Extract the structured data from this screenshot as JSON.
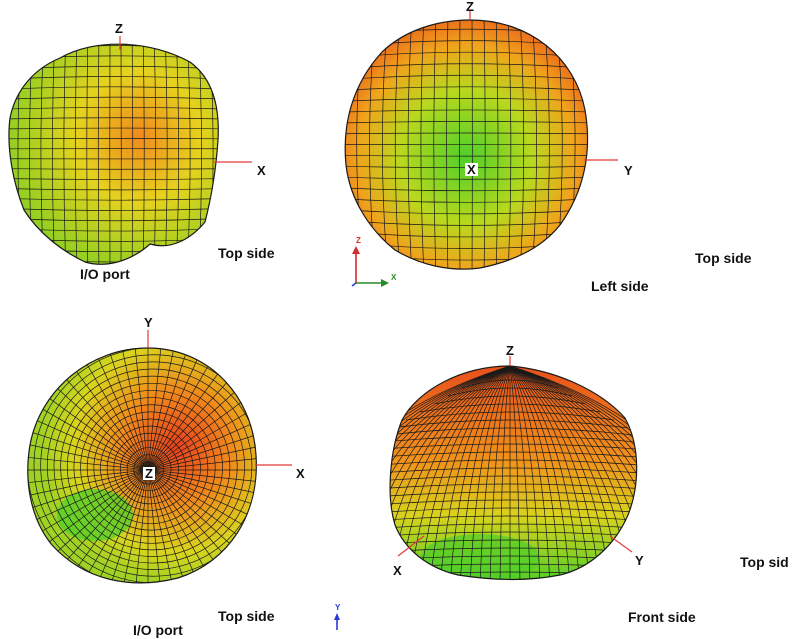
{
  "views": [
    {
      "id": "view-1",
      "axes": {
        "vertical": "Z",
        "horizontal": "X"
      },
      "captions": [
        "Top side",
        "I/O port"
      ]
    },
    {
      "id": "view-2",
      "axes": {
        "vertical": "Z",
        "horizontal": "Y",
        "center": "X"
      },
      "captions": [
        "Top side",
        "Left side"
      ],
      "triad": {
        "up": "Z",
        "right": "X"
      }
    },
    {
      "id": "view-3",
      "axes": {
        "vertical": "Y",
        "horizontal": "X",
        "center": "Z"
      },
      "captions": [
        "Top side",
        "I/O port"
      ],
      "triad": {
        "up": "Y"
      }
    },
    {
      "id": "view-4",
      "axes": {
        "vertical": "Z",
        "left": "X",
        "right": "Y"
      },
      "captions": [
        "Top sid",
        "Front side"
      ]
    }
  ],
  "colors": {
    "red": "#e8401c",
    "orange": "#f08a1c",
    "yellow": "#e6d21e",
    "green": "#5cd02a",
    "mesh": "#1a1a1a",
    "axis_line": "#e03a3a"
  }
}
